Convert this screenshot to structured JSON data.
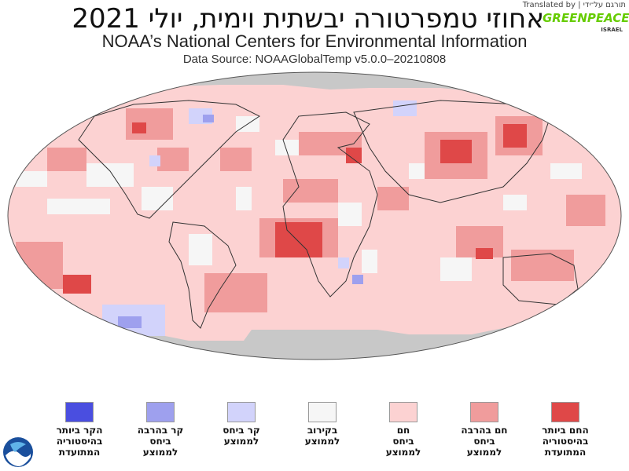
{
  "header": {
    "title": "אחוזי טמפרטורה יבשתית וימית, יולי 2021",
    "subtitle": "NOAA’s National Centers for Environmental Information",
    "source": "Data Source: NOAAGlobalTemp v5.0.0–20210808",
    "translated_by": "תורגם על־ידי | Translated by"
  },
  "logo": {
    "name": "GREENPEACE",
    "sub": "ISRAEL"
  },
  "legend": [
    {
      "label": "הקר ביותר\nבהיסטוריה\nהמתועדת",
      "color": "#4a4ee0"
    },
    {
      "label": "קר בהרבה\nביחס\nלממוצע",
      "color": "#9ea0ee"
    },
    {
      "label": "קר ביחס\nלממוצע",
      "color": "#d2d3fb"
    },
    {
      "label": "בקירוב\nלממוצע",
      "color": "#f6f6f6"
    },
    {
      "label": "חם\nביחס\nלממוצע",
      "color": "#fcd2d2"
    },
    {
      "label": "חם בהרבה\nביחס\nלממוצע",
      "color": "#f09c9c"
    },
    {
      "label": "החם ביותר\nבהיסטוריה\nהמתועדת",
      "color": "#df4848"
    }
  ],
  "map_colors": {
    "no_data": "#c8c8c8",
    "near_average": "#f6f6f6",
    "warmer": "#fcd2d2",
    "much_warmer": "#f09c9c",
    "record_warm": "#df4848",
    "cooler": "#d2d3fb",
    "much_cooler": "#9ea0ee",
    "coastline": "#333333"
  }
}
